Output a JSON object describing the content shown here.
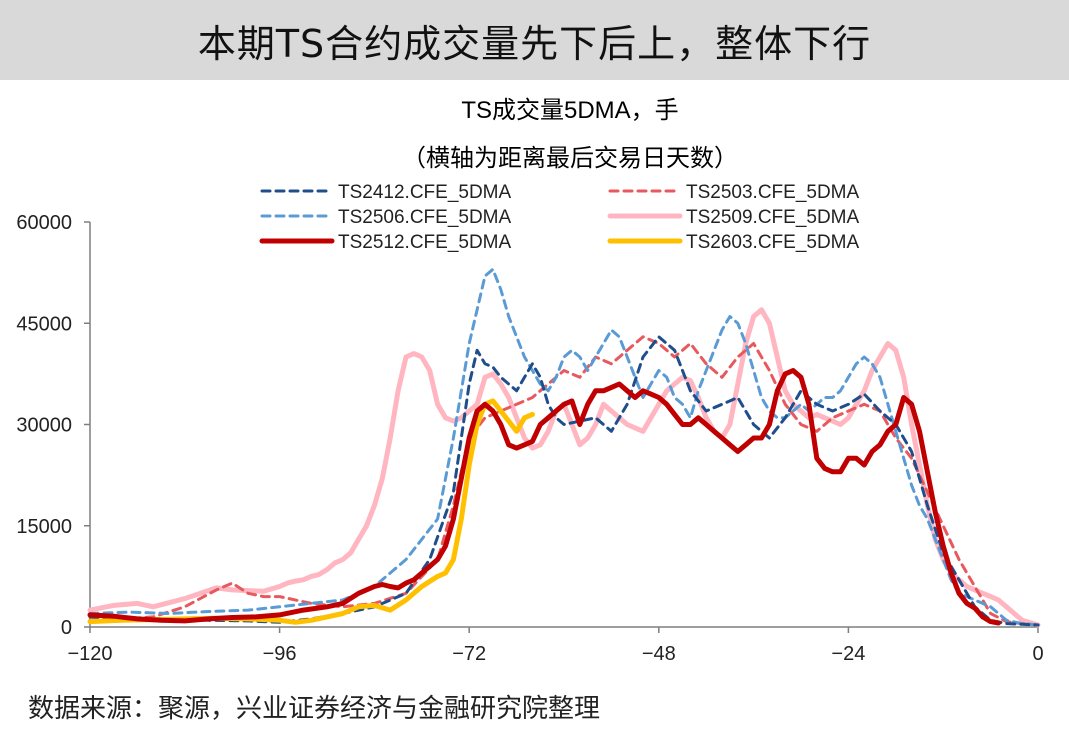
{
  "banner": {
    "title": "本期TS合约成交量先下后上，整体下行"
  },
  "source": "数据来源：聚源，兴业证券经济与金融研究院整理",
  "chart_data": {
    "type": "line",
    "title": "TS成交量5DMA，手",
    "subtitle": "（横轴为距离最后交易日天数）",
    "xlim": [
      -120,
      0
    ],
    "ylim": [
      0,
      60000
    ],
    "xticks": [
      -120,
      -96,
      -72,
      -48,
      -24,
      0
    ],
    "xtick_labels": [
      "−120",
      "−96",
      "−72",
      "−48",
      "−24",
      "0"
    ],
    "yticks": [
      0,
      15000,
      30000,
      45000,
      60000
    ],
    "ytick_labels": [
      "0",
      "15000",
      "30000",
      "45000",
      "60000"
    ],
    "legend": "top",
    "series": [
      {
        "name": "TS2412.CFE_5DMA",
        "color": "#1f4e8c",
        "dash": true,
        "width": 3,
        "x": [
          -120,
          -115,
          -110,
          -105,
          -100,
          -96,
          -92,
          -88,
          -84,
          -80,
          -77,
          -74,
          -72,
          -71,
          -70,
          -69,
          -68,
          -67,
          -66,
          -65,
          -64,
          -63,
          -62,
          -61,
          -60,
          -58,
          -56,
          -54,
          -52,
          -50,
          -48,
          -46,
          -44,
          -42,
          -40,
          -38,
          -36,
          -34,
          -32,
          -30,
          -28,
          -26,
          -24,
          -22,
          -20,
          -18,
          -16,
          -14,
          -12,
          -10,
          -8,
          -6,
          -4,
          -2,
          0
        ],
        "y": [
          1500,
          1200,
          1100,
          1000,
          900,
          700,
          1200,
          2000,
          3000,
          5000,
          10000,
          20000,
          36000,
          41000,
          39000,
          38500,
          37000,
          36000,
          35000,
          37000,
          39000,
          37000,
          33000,
          31000,
          30000,
          30500,
          31000,
          29000,
          33000,
          40000,
          43000,
          41000,
          35000,
          32000,
          33000,
          34000,
          30000,
          28000,
          31000,
          35000,
          33000,
          32000,
          33000,
          34500,
          32000,
          30000,
          26000,
          18000,
          11000,
          7000,
          3000,
          1000,
          500,
          400,
          300
        ]
      },
      {
        "name": "TS2503.CFE_5DMA",
        "color": "#e8595e",
        "dash": true,
        "width": 3,
        "x": [
          -120,
          -116,
          -112,
          -108,
          -104,
          -102,
          -100,
          -98,
          -96,
          -92,
          -88,
          -84,
          -80,
          -76,
          -74,
          -72,
          -70,
          -68,
          -66,
          -64,
          -62,
          -60,
          -58,
          -56,
          -54,
          -52,
          -50,
          -48,
          -46,
          -44,
          -42,
          -40,
          -38,
          -36,
          -34,
          -32,
          -30,
          -28,
          -26,
          -24,
          -22,
          -20,
          -18,
          -16,
          -14,
          -12,
          -10,
          -8,
          -6,
          -4,
          -2,
          0
        ],
        "y": [
          1000,
          1200,
          1500,
          3000,
          5500,
          6500,
          5000,
          4500,
          4500,
          3500,
          3000,
          3500,
          5000,
          10000,
          18000,
          28000,
          31000,
          32000,
          33000,
          34000,
          36000,
          38000,
          37000,
          40000,
          39000,
          41000,
          43000,
          42000,
          40000,
          42000,
          39000,
          37000,
          40000,
          42000,
          38000,
          33000,
          30000,
          29000,
          31000,
          32000,
          33000,
          32000,
          28000,
          25000,
          20000,
          15000,
          10000,
          6000,
          2000,
          800,
          500,
          300
        ]
      },
      {
        "name": "TS2506.CFE_5DMA",
        "color": "#5b9bd5",
        "dash": true,
        "width": 3,
        "x": [
          -120,
          -115,
          -110,
          -105,
          -100,
          -96,
          -92,
          -88,
          -84,
          -80,
          -78,
          -76,
          -75,
          -74,
          -73,
          -72,
          -71,
          -70,
          -69,
          -68,
          -67,
          -66,
          -65,
          -64,
          -63,
          -62,
          -61,
          -60,
          -59,
          -58,
          -57,
          -56,
          -55,
          -54,
          -53,
          -52,
          -51,
          -50,
          -49,
          -48,
          -47,
          -46,
          -45,
          -44,
          -43,
          -42,
          -41,
          -40,
          -39,
          -38,
          -37,
          -36,
          -35,
          -34,
          -33,
          -32,
          -31,
          -30,
          -29,
          -28,
          -27,
          -26,
          -25,
          -24,
          -23,
          -22,
          -21,
          -20,
          -19,
          -18,
          -17,
          -16,
          -15,
          -14,
          -13,
          -12,
          -11,
          -10,
          -9,
          -8,
          -7,
          -6,
          -5,
          -4,
          -2,
          0
        ],
        "y": [
          2000,
          2200,
          2000,
          2300,
          2500,
          3000,
          3500,
          4000,
          6000,
          10000,
          13000,
          16000,
          22000,
          28000,
          35000,
          42000,
          47000,
          52000,
          53000,
          50000,
          46000,
          43000,
          40000,
          38000,
          36000,
          35000,
          37000,
          40000,
          41000,
          40000,
          38000,
          40000,
          42000,
          44000,
          43000,
          40000,
          37000,
          34000,
          36000,
          38000,
          37000,
          34000,
          33000,
          31000,
          35000,
          38000,
          41000,
          44000,
          46000,
          45000,
          42000,
          38000,
          34000,
          32000,
          31000,
          31000,
          32000,
          33000,
          32000,
          33000,
          34000,
          34000,
          35000,
          37000,
          39000,
          40000,
          39000,
          37000,
          33000,
          29000,
          25000,
          21000,
          18000,
          16000,
          13000,
          10000,
          7000,
          5000,
          4500,
          4000,
          3500,
          3000,
          2000,
          1000,
          500,
          300
        ]
      },
      {
        "name": "TS2509.CFE_5DMA",
        "color": "#ffb6c1",
        "dash": false,
        "width": 5,
        "x": [
          -120,
          -117,
          -114,
          -112,
          -110,
          -108,
          -106,
          -104,
          -102,
          -100,
          -98,
          -96,
          -95,
          -94,
          -93,
          -92,
          -91,
          -90,
          -89,
          -88,
          -87,
          -86,
          -85,
          -84,
          -83,
          -82,
          -81,
          -80,
          -79,
          -78,
          -77,
          -76,
          -75,
          -74,
          -73,
          -72,
          -71,
          -70,
          -69,
          -68,
          -67,
          -66,
          -65,
          -64,
          -63,
          -62,
          -61,
          -60,
          -59,
          -58,
          -57,
          -56,
          -55,
          -54,
          -53,
          -52,
          -51,
          -50,
          -49,
          -48,
          -47,
          -46,
          -45,
          -44,
          -43,
          -42,
          -41,
          -40,
          -39,
          -38,
          -37,
          -36,
          -35,
          -34,
          -33,
          -32,
          -31,
          -30,
          -29,
          -28,
          -27,
          -26,
          -25,
          -24,
          -23,
          -22,
          -21,
          -20,
          -19,
          -18,
          -17,
          -16,
          -15,
          -14,
          -13,
          -12,
          -11,
          -10,
          -9,
          -8,
          -7,
          -6,
          -5,
          -4,
          -2,
          0
        ],
        "y": [
          2500,
          3200,
          3500,
          3000,
          3600,
          4200,
          5000,
          5800,
          5500,
          5400,
          5300,
          6000,
          6500,
          6800,
          7000,
          7500,
          7800,
          8500,
          9500,
          10000,
          11000,
          13000,
          15000,
          18000,
          22000,
          28000,
          35000,
          40000,
          40500,
          40000,
          38000,
          33000,
          31000,
          30500,
          31000,
          32000,
          33000,
          37000,
          37500,
          36000,
          34000,
          31000,
          28000,
          26500,
          27000,
          29000,
          32000,
          33000,
          30000,
          27000,
          28000,
          30000,
          33000,
          32000,
          31000,
          30000,
          29500,
          29000,
          31000,
          33000,
          35000,
          36000,
          37000,
          36500,
          34000,
          31000,
          29000,
          28000,
          30000,
          36000,
          42000,
          46000,
          47000,
          45000,
          40000,
          35000,
          33000,
          32000,
          31000,
          31500,
          31000,
          30500,
          30000,
          31000,
          33000,
          35000,
          38000,
          40000,
          42000,
          41000,
          37000,
          30000,
          24000,
          18000,
          13000,
          10000,
          8000,
          7000,
          6000,
          5500,
          5000,
          4500,
          4000,
          3000,
          1000,
          300
        ]
      },
      {
        "name": "TS2512.CFE_5DMA",
        "color": "#c00000",
        "dash": false,
        "width": 5,
        "x": [
          -120,
          -117,
          -114,
          -111,
          -108,
          -105,
          -102,
          -99,
          -96,
          -93,
          -90,
          -88,
          -86,
          -84,
          -83,
          -82,
          -81,
          -80,
          -79,
          -78,
          -77,
          -76,
          -75,
          -74,
          -73,
          -72,
          -71,
          -70,
          -69,
          -68,
          -67,
          -66,
          -65,
          -64,
          -63,
          -62,
          -61,
          -60,
          -59,
          -58,
          -57,
          -56,
          -55,
          -54,
          -53,
          -52,
          -51,
          -50,
          -49,
          -48,
          -47,
          -46,
          -45,
          -44,
          -43,
          -42,
          -41,
          -40,
          -39,
          -38,
          -37,
          -36,
          -35,
          -34,
          -33,
          -32,
          -31,
          -30,
          -29,
          -28,
          -27,
          -26,
          -25,
          -24,
          -23,
          -22,
          -21,
          -20,
          -19,
          -18,
          -17,
          -16,
          -15,
          -14,
          -13,
          -12,
          -11,
          -10,
          -9,
          -8,
          -7,
          -6,
          -5
        ],
        "y": [
          1800,
          1600,
          1200,
          1000,
          900,
          1200,
          1400,
          1500,
          1800,
          2500,
          3000,
          3500,
          5000,
          6000,
          6300,
          6000,
          5800,
          6500,
          7000,
          8000,
          9000,
          10000,
          12000,
          16000,
          22000,
          28000,
          32000,
          33000,
          32000,
          30000,
          27000,
          26500,
          27000,
          27500,
          30000,
          31000,
          32000,
          33000,
          33500,
          30000,
          33000,
          35000,
          35000,
          35500,
          36000,
          35000,
          34000,
          35000,
          34500,
          34000,
          33000,
          31500,
          30000,
          30000,
          31000,
          30000,
          29000,
          28000,
          27000,
          26000,
          27000,
          28000,
          28000,
          30000,
          35000,
          37500,
          38000,
          37000,
          33000,
          25000,
          23500,
          23000,
          23000,
          25000,
          25000,
          24000,
          26000,
          27000,
          29000,
          30000,
          34000,
          33000,
          29000,
          23000,
          17000,
          12000,
          8000,
          5000,
          3500,
          2800,
          1500,
          800,
          600
        ]
      },
      {
        "name": "TS2603.CFE_5DMA",
        "color": "#ffc000",
        "dash": false,
        "width": 5,
        "x": [
          -120,
          -116,
          -112,
          -108,
          -104,
          -100,
          -96,
          -94,
          -92,
          -90,
          -88,
          -86,
          -84,
          -82,
          -80,
          -78,
          -76,
          -75,
          -74,
          -73,
          -72,
          -71,
          -70,
          -69,
          -68,
          -67,
          -66,
          -65,
          -64
        ],
        "y": [
          800,
          1000,
          1100,
          1200,
          1300,
          1200,
          1000,
          700,
          1000,
          1500,
          2000,
          3000,
          3200,
          2500,
          4000,
          6000,
          7500,
          8000,
          10000,
          16000,
          24000,
          30000,
          33000,
          33500,
          32000,
          30500,
          29000,
          31000,
          31500
        ]
      }
    ]
  }
}
